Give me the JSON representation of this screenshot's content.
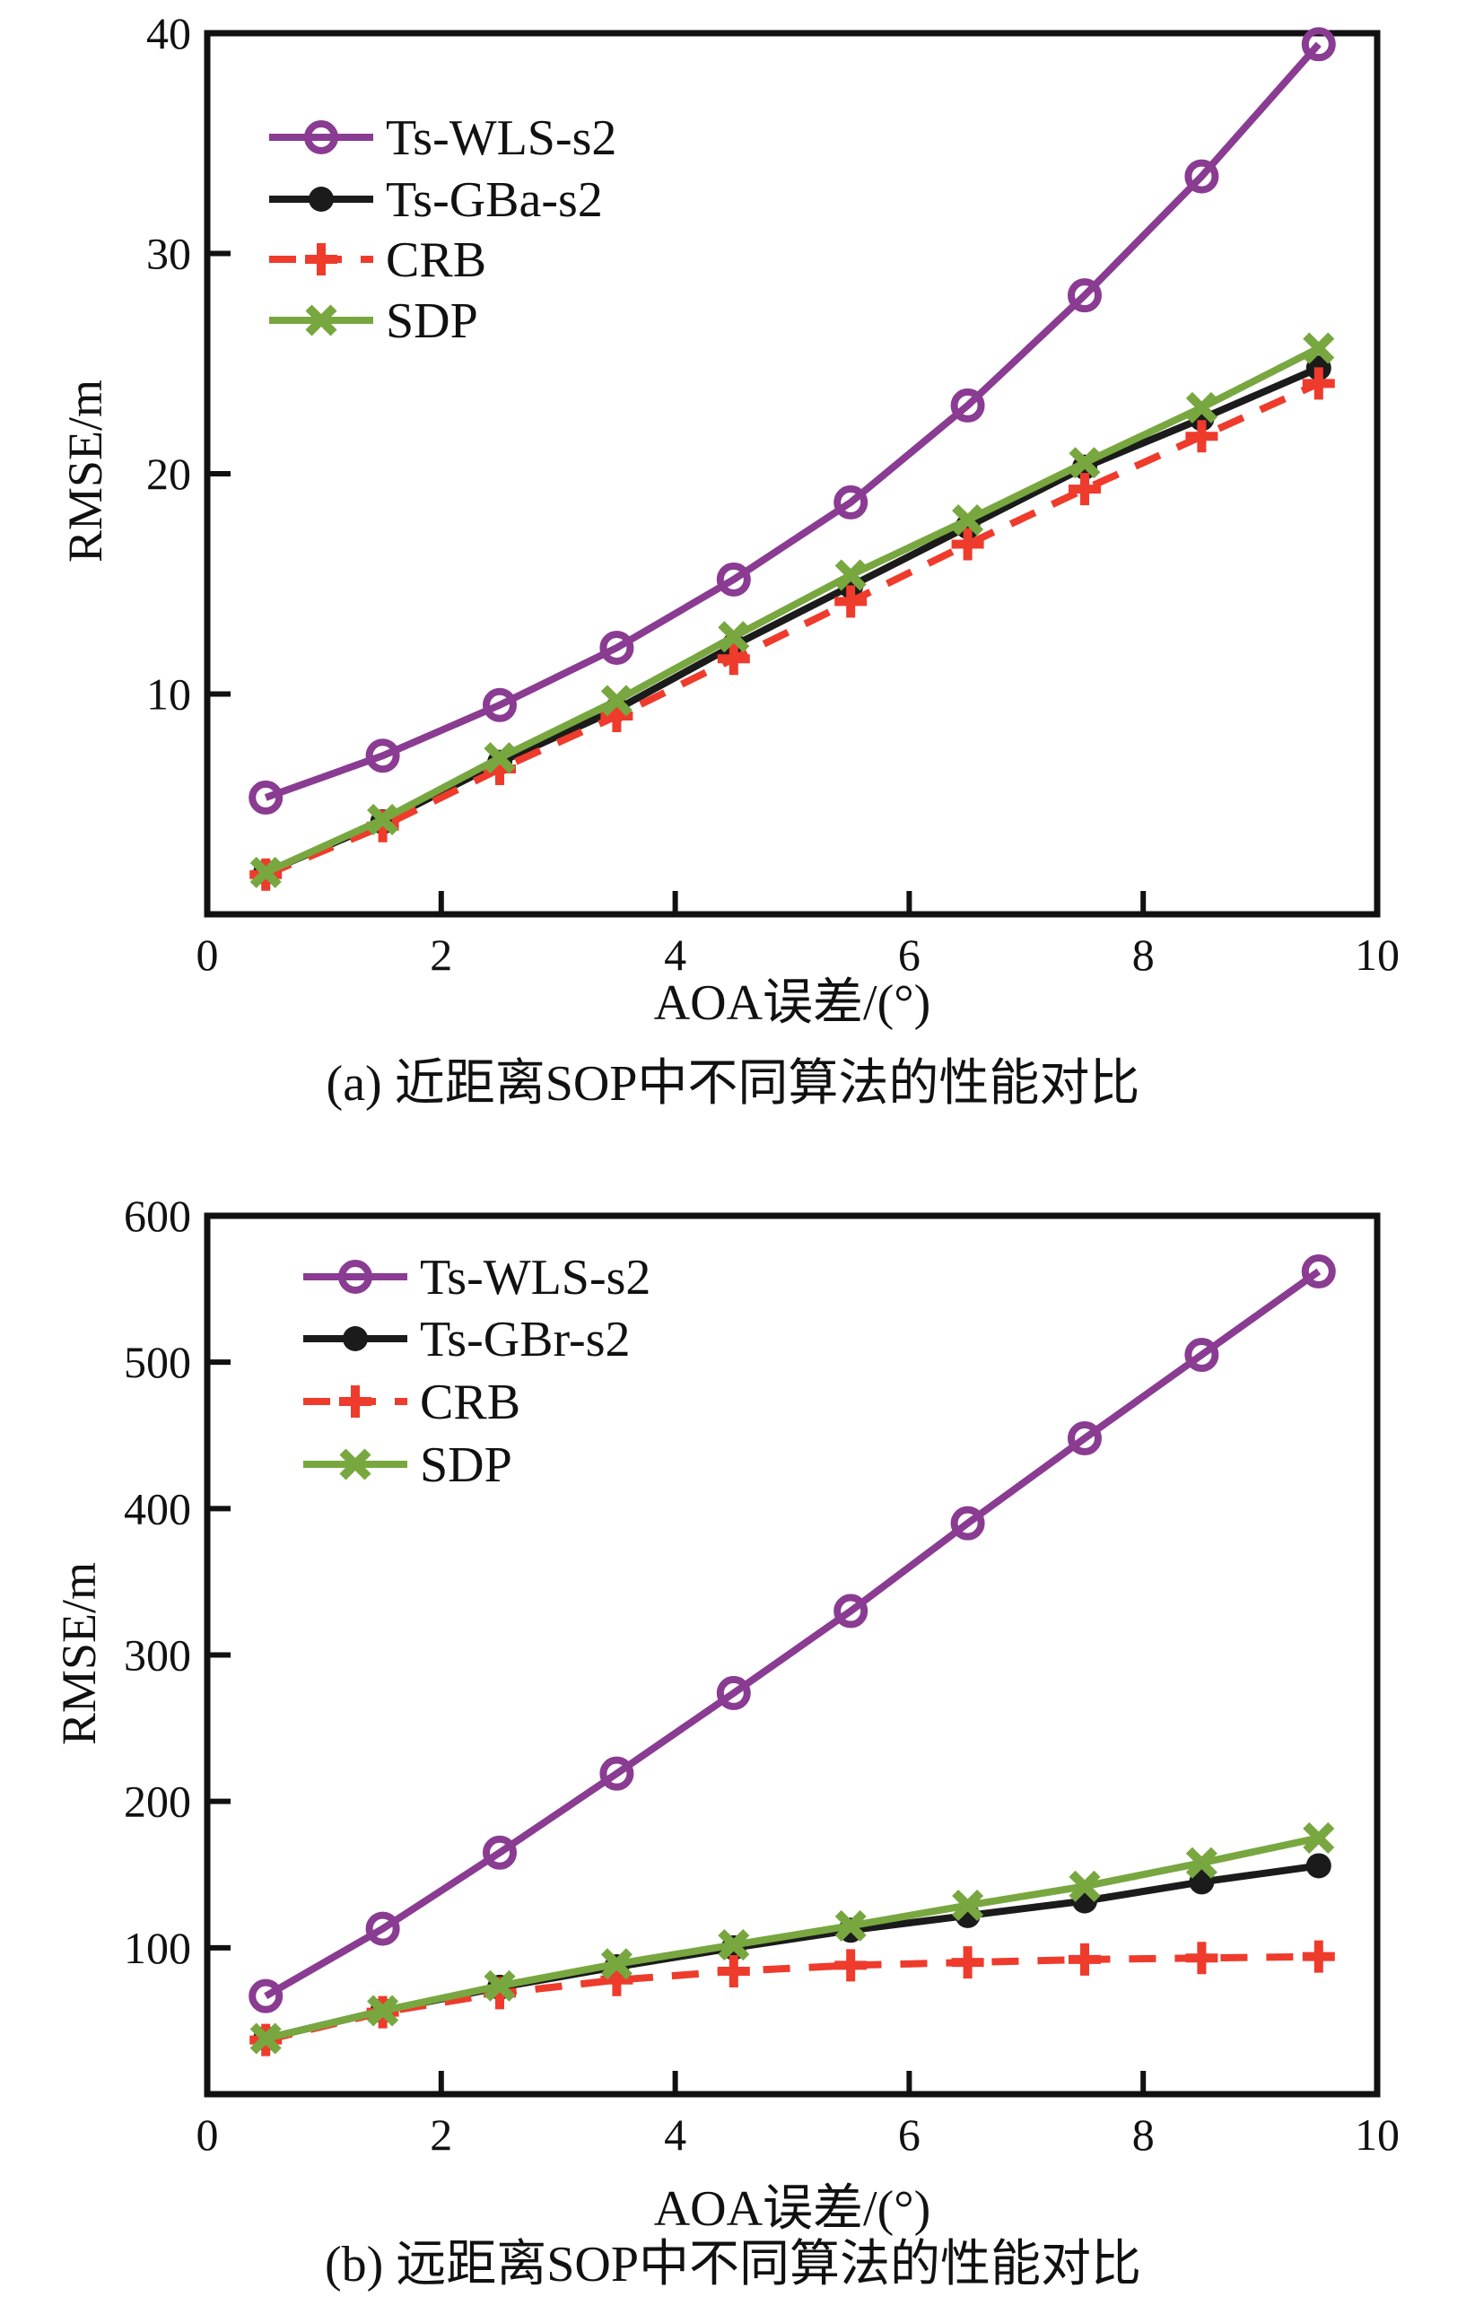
{
  "figure": {
    "background": "#ffffff",
    "axis_color": "#111111"
  },
  "chart_data": [
    {
      "type": "line",
      "caption": "(a) 近距离SOP中不同算法的性能对比",
      "xlabel": "AOA误差/(°)",
      "ylabel": "RMSE/m",
      "xlim": [
        0,
        10
      ],
      "ylim": [
        0,
        40
      ],
      "xticks": [
        0,
        2,
        4,
        6,
        8,
        10
      ],
      "yticks": [
        10,
        20,
        30,
        40
      ],
      "grid": false,
      "legend_position": "upper-left-inside",
      "x": [
        0.5,
        1.5,
        2.5,
        3.5,
        4.5,
        5.5,
        6.5,
        7.5,
        8.5,
        9.5
      ],
      "series": [
        {
          "name": "Ts-WLS-s2",
          "color": "#8a3b92",
          "marker": "circle-open",
          "line": "solid",
          "values": [
            5.3,
            7.2,
            9.5,
            12.1,
            15.2,
            18.7,
            23.1,
            28.1,
            33.5,
            39.5
          ]
        },
        {
          "name": "Ts-GBa-s2",
          "color": "#1b1b1b",
          "marker": "circle",
          "line": "solid",
          "values": [
            1.9,
            4.2,
            6.9,
            9.3,
            12.2,
            14.9,
            17.6,
            20.3,
            22.5,
            24.8
          ]
        },
        {
          "name": "CRB",
          "color": "#ee3b2c",
          "marker": "plus",
          "line": "dashed",
          "values": [
            1.8,
            4.0,
            6.6,
            9.0,
            11.6,
            14.2,
            16.8,
            19.3,
            21.7,
            24.1
          ]
        },
        {
          "name": "SDP",
          "color": "#78a740",
          "marker": "x",
          "line": "solid",
          "values": [
            1.9,
            4.3,
            7.1,
            9.7,
            12.6,
            15.4,
            17.9,
            20.5,
            23.0,
            25.7
          ]
        }
      ]
    },
    {
      "type": "line",
      "caption": "(b) 远距离SOP中不同算法的性能对比",
      "xlabel": "AOA误差/(°)",
      "ylabel": "RMSE/m",
      "xlim": [
        0,
        10
      ],
      "ylim": [
        0,
        600
      ],
      "xticks": [
        0,
        2,
        4,
        6,
        8,
        10
      ],
      "yticks": [
        100,
        200,
        300,
        400,
        500,
        600
      ],
      "grid": false,
      "legend_position": "upper-left-inside",
      "x": [
        0.5,
        1.5,
        2.5,
        3.5,
        4.5,
        5.5,
        6.5,
        7.5,
        8.5,
        9.5
      ],
      "series": [
        {
          "name": "Ts-WLS-s2",
          "color": "#8a3b92",
          "marker": "circle-open",
          "line": "solid",
          "values": [
            67,
            113,
            165,
            219,
            274,
            330,
            390,
            448,
            505,
            562
          ]
        },
        {
          "name": "Ts-GBr-s2",
          "color": "#1b1b1b",
          "marker": "circle",
          "line": "solid",
          "values": [
            38,
            57,
            73,
            87,
            100,
            112,
            122,
            132,
            145,
            156
          ]
        },
        {
          "name": "CRB",
          "color": "#ee3b2c",
          "marker": "plus",
          "line": "dashed",
          "values": [
            37,
            56,
            69,
            78,
            84,
            88,
            90,
            92,
            93,
            94
          ]
        },
        {
          "name": "SDP",
          "color": "#78a740",
          "marker": "x",
          "line": "solid",
          "values": [
            38,
            57,
            74,
            89,
            102,
            115,
            129,
            142,
            158,
            175
          ]
        }
      ]
    }
  ]
}
